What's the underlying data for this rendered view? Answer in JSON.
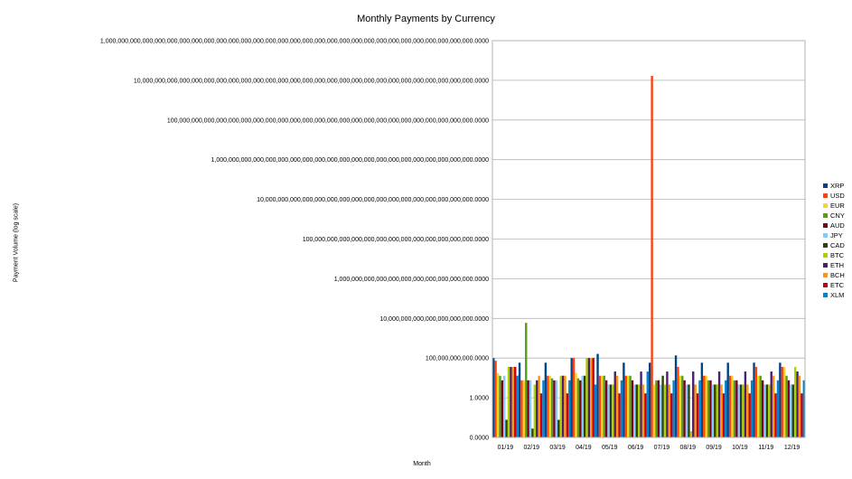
{
  "chart_data": {
    "type": "bar",
    "title": "Monthly Payments by Currency",
    "xlabel": "Month",
    "ylabel": "Payment Volume (log scale)",
    "yscale": "log",
    "ylim": [
      0.1,
      1e+44
    ],
    "y_tick_labels": [
      "0.0000",
      "1.0000",
      "100,000,000,000.0000",
      "10,000,000,000,000,000,000,000.0000",
      "1,000,000,000,000,000,000,000,000,000,000,000.0000",
      "100,000,000,000,000,000,000,000,000,000,000,000,000,000.0000",
      "10,000,000,000,000,000,000,000,000,000,000,000,000,000,000,000,000,000.0000",
      "1,000,000,000,000,000,000,000,000,000,000,000,000,000,000,000,000,000,000,000,000,000.0000",
      "100,000,000,000,000,000,000,000,000,000,000,000,000,000,000,000,000,000,000,000,000,000,000,000,000.0000",
      "10,000,000,000,000,000,000,000,000,000,000,000,000,000,000,000,000,000,000,000,000,000,000,000,000,000,000,000.0000",
      "1,000,000,000,000,000,000,000,000,000,000,000,000,000,000,000,000,000,000,000,000,000,000,000,000,000,000,000,000,000,000.0000"
    ],
    "grid": true,
    "legend": "right",
    "categories": [
      "01/19",
      "02/19",
      "03/19",
      "04/19",
      "05/19",
      "06/19",
      "07/19",
      "08/19",
      "09/19",
      "10/19",
      "11/19",
      "12/19"
    ],
    "series": [
      {
        "name": "XRP",
        "color": "#004586",
        "values": [
          100000000.0,
          30000000.0,
          30000000.0,
          100000000.0,
          300000000.0,
          30000000.0,
          30000000.0,
          200000000.0,
          30000000.0,
          30000000.0,
          30000000.0,
          30000000.0
        ]
      },
      {
        "name": "USD",
        "color": "#ff420e",
        "values": [
          50000000.0,
          300000.0,
          1000000.0,
          100000000.0,
          1000000.0,
          1000000.0,
          1e+40,
          10000000.0,
          1000000.0,
          1000000.0,
          10000000.0,
          10000000.0
        ]
      },
      {
        "name": "EUR",
        "color": "#ffd320",
        "values": [
          2000000.0,
          300000.0,
          1000000.0,
          2000000.0,
          1000000.0,
          1000000.0,
          100000.0,
          1000000.0,
          1000000.0,
          1000000.0,
          1000000.0,
          10000000.0
        ]
      },
      {
        "name": "CNY",
        "color": "#579d1c",
        "values": [
          1000000.0,
          1000000000000.0,
          500000.0,
          500000.0,
          1000000.0,
          1000000.0,
          300000.0,
          1000000.0,
          300000.0,
          300000.0,
          1000000.0,
          1000000.0
        ]
      },
      {
        "name": "AUD",
        "color": "#7e0021",
        "values": [
          300000.0,
          300000.0,
          300000.0,
          300000.0,
          300000.0,
          300000.0,
          300000.0,
          300000.0,
          300000.0,
          300000.0,
          300000.0,
          300000.0
        ]
      },
      {
        "name": "JPY",
        "color": "#83caff",
        "values": [
          1000000.0,
          300000.0,
          300000.0,
          1000000.0,
          100000.0,
          100000.0,
          100000.0,
          100000.0,
          100000.0,
          100000.0,
          100000.0,
          100000.0
        ]
      },
      {
        "name": "CAD",
        "color": "#314004",
        "values": [
          10,
          1,
          10,
          1000000.0,
          100000.0,
          100000.0,
          1000000.0,
          100000.0,
          100000.0,
          100000.0,
          100000.0,
          100000.0
        ]
      },
      {
        "name": "BTC",
        "color": "#aecf00",
        "values": [
          10000000.0,
          100000.0,
          1000000.0,
          100000000.0,
          100000.0,
          100000.0,
          100000.0,
          0.5,
          100000.0,
          100000.0,
          100000.0,
          10000000.0
        ]
      },
      {
        "name": "ETH",
        "color": "#4b1f6f",
        "values": [
          10000000.0,
          300000.0,
          1000000.0,
          100000000.0,
          3000000.0,
          3000000.0,
          3000000.0,
          3000000.0,
          3000000.0,
          3000000.0,
          3000000.0,
          3000000.0
        ]
      },
      {
        "name": "BCH",
        "color": "#ff950e",
        "values": [
          10000000.0,
          1000000.0,
          1000000.0,
          100000000.0,
          1000000.0,
          100000.0,
          100000.0,
          100000.0,
          100000.0,
          100000.0,
          1000000.0,
          1000000.0
        ]
      },
      {
        "name": "ETC",
        "color": "#c5000b",
        "values": [
          10000000.0,
          10000.0,
          10000.0,
          100000000.0,
          10000.0,
          10000.0,
          10000.0,
          10000.0,
          10000.0,
          10000.0,
          10000.0,
          10000.0
        ]
      },
      {
        "name": "XLM",
        "color": "#0084d1",
        "values": [
          1000000.0,
          300000.0,
          300000.0,
          100000.0,
          300000.0,
          3000000.0,
          300000.0,
          300000.0,
          300000.0,
          300000.0,
          300000.0,
          300000.0
        ]
      }
    ]
  }
}
